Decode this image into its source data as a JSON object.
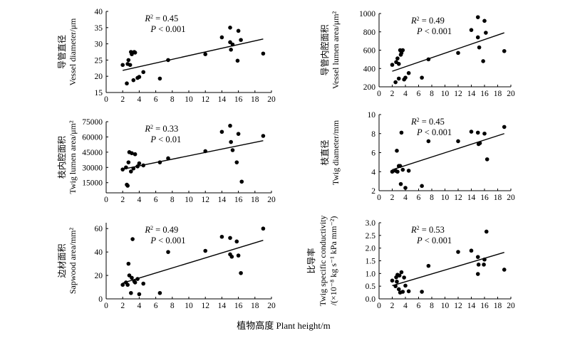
{
  "figure": {
    "xlabel": "植物高度 Plant height/m"
  },
  "chart_data": [
    {
      "type": "scatter",
      "ylabel_cn": "导管直径",
      "ylabel_en": "Vessel diameter/μm",
      "stats": [
        "R2 = 0.45",
        "P < 0.001"
      ],
      "xlim": [
        0,
        20
      ],
      "ylim": [
        15,
        40
      ],
      "xticks": [
        "0",
        "2",
        "4",
        "6",
        "8",
        "10",
        "12",
        "14",
        "16",
        "18",
        "20"
      ],
      "yticks": [
        "15",
        "20",
        "25",
        "30",
        "35",
        "40"
      ],
      "x": [
        2.0,
        2.5,
        2.6,
        2.7,
        2.9,
        3.0,
        3.1,
        3.3,
        3.4,
        3.5,
        3.8,
        4.0,
        4.5,
        6.5,
        7.5,
        12.0,
        14.0,
        15.0,
        15.0,
        15.1,
        15.3,
        15.9,
        16.0,
        16.3,
        19.0
      ],
      "y": [
        23.5,
        17.8,
        23.8,
        25.0,
        23.5,
        27.5,
        26.8,
        18.8,
        27.5,
        27.3,
        19.5,
        19.8,
        21.3,
        19.3,
        25.0,
        26.8,
        32.0,
        35.0,
        30.5,
        28.2,
        29.8,
        24.8,
        34.0,
        31.2,
        27.0
      ],
      "fit": [
        [
          2,
          21.8
        ],
        [
          19,
          31.5
        ]
      ]
    },
    {
      "type": "scatter",
      "ylabel_cn": "导管内腔面积",
      "ylabel_en": "Vessel lumen area/μm²",
      "stats": [
        "R2 = 0.49",
        "P < 0.001"
      ],
      "xlim": [
        0,
        20
      ],
      "ylim": [
        200,
        1000
      ],
      "xticks": [
        "0",
        "2",
        "4",
        "6",
        "8",
        "10",
        "12",
        "14",
        "16",
        "18",
        "20"
      ],
      "yticks": [
        "200",
        "400",
        "600",
        "800",
        "1000"
      ],
      "x": [
        2.0,
        2.5,
        2.6,
        2.8,
        3.0,
        3.0,
        3.2,
        3.3,
        3.4,
        3.6,
        3.8,
        4.0,
        4.5,
        6.5,
        7.5,
        12.0,
        14.0,
        15.0,
        15.0,
        15.2,
        15.8,
        16.0,
        16.2,
        19.0
      ],
      "y": [
        440,
        250,
        470,
        510,
        450,
        290,
        600,
        550,
        570,
        600,
        280,
        300,
        350,
        300,
        500,
        570,
        820,
        960,
        740,
        630,
        480,
        920,
        790,
        590
      ],
      "fit": [
        [
          2,
          370
        ],
        [
          19,
          790
        ]
      ]
    },
    {
      "type": "scatter",
      "ylabel_cn": "枝内腔面积",
      "ylabel_en": "Twig lumen area/μm²",
      "stats": [
        "R2 = 0.33",
        "P < 0.01"
      ],
      "xlim": [
        0,
        20
      ],
      "ylim": [
        5000,
        75000
      ],
      "xticks": [
        "0",
        "2",
        "4",
        "6",
        "8",
        "10",
        "12",
        "14",
        "16",
        "18",
        "20"
      ],
      "yticks": [
        "15000",
        "30000",
        "45000",
        "60000",
        "75000"
      ],
      "x": [
        2.0,
        2.4,
        2.5,
        2.6,
        2.7,
        2.8,
        3.0,
        3.1,
        3.3,
        3.5,
        3.8,
        4.0,
        4.5,
        6.5,
        7.5,
        12.0,
        14.0,
        15.0,
        15.1,
        15.3,
        15.8,
        16.0,
        16.4,
        19.0
      ],
      "y": [
        28000,
        30000,
        13000,
        12000,
        35000,
        45000,
        26000,
        44000,
        29000,
        43000,
        31000,
        34000,
        32000,
        35000,
        39000,
        46000,
        65000,
        71000,
        55000,
        47000,
        35000,
        63000,
        16000,
        61000
      ],
      "fit": [
        [
          2,
          28200
        ],
        [
          19,
          56300
        ]
      ]
    },
    {
      "type": "scatter",
      "ylabel_cn": "枝直径",
      "ylabel_en": "Twig diameter/mm",
      "stats": [
        "R2 = 0.45",
        "P < 0.001"
      ],
      "xlim": [
        0,
        20
      ],
      "ylim": [
        2,
        10
      ],
      "xticks": [
        "0",
        "2",
        "4",
        "6",
        "8",
        "10",
        "12",
        "14",
        "16",
        "18",
        "20"
      ],
      "yticks": [
        "2",
        "4",
        "6",
        "8",
        "10"
      ],
      "x": [
        2.0,
        2.5,
        2.7,
        2.8,
        3.0,
        3.2,
        3.3,
        3.4,
        3.6,
        4.0,
        4.5,
        6.5,
        7.5,
        12.0,
        14.0,
        15.0,
        15.1,
        15.3,
        16.0,
        16.4,
        19.0
      ],
      "y": [
        4.0,
        4.1,
        6.2,
        4.0,
        4.6,
        4.6,
        2.7,
        8.1,
        4.2,
        2.3,
        4.1,
        2.5,
        7.2,
        7.2,
        8.2,
        8.1,
        6.9,
        7.0,
        8.0,
        5.3,
        8.7
      ],
      "fit": [
        [
          2,
          4.2
        ],
        [
          19,
          8.0
        ]
      ]
    },
    {
      "type": "scatter",
      "ylabel_cn": "边材面积",
      "ylabel_en": "Sapwood area/mm²",
      "stats": [
        "R2 = 0.49",
        "P < 0.001"
      ],
      "xlim": [
        0,
        20
      ],
      "ylim": [
        0,
        65
      ],
      "xticks": [
        "0",
        "2",
        "4",
        "6",
        "8",
        "10",
        "12",
        "14",
        "16",
        "18",
        "20"
      ],
      "yticks": [
        "0",
        "20",
        "40",
        "60"
      ],
      "x": [
        2.0,
        2.4,
        2.6,
        2.7,
        2.8,
        3.0,
        3.1,
        3.2,
        3.4,
        3.5,
        3.8,
        4.0,
        4.5,
        6.5,
        7.5,
        12.0,
        14.0,
        15.0,
        15.0,
        15.2,
        15.8,
        16.0,
        16.3,
        19.0
      ],
      "y": [
        12,
        14,
        12,
        30,
        20,
        5,
        18,
        51,
        15,
        14,
        17,
        4,
        13,
        5,
        40,
        41,
        53,
        52,
        38,
        36,
        49,
        37,
        22,
        60
      ],
      "fit": [
        [
          2,
          13.5
        ],
        [
          19,
          50
        ]
      ]
    },
    {
      "type": "scatter",
      "ylabel_cn": "比导率",
      "ylabel_en": "Twig specific conductivity",
      "ylabel_en2": "/(×10⁻⁸ kg s⁻¹ kPa mm⁻²)",
      "stats": [
        "R2 = 0.53",
        "P < 0.001"
      ],
      "xlim": [
        0,
        20
      ],
      "ylim": [
        0,
        3.0
      ],
      "xticks": [
        "0",
        "2",
        "4",
        "6",
        "8",
        "10",
        "12",
        "14",
        "16",
        "18",
        "20"
      ],
      "yticks": [
        "0.0",
        "0.5",
        "1.0",
        "1.5",
        "2.0",
        "2.5",
        "3.0"
      ],
      "x": [
        2.0,
        2.5,
        2.6,
        2.7,
        2.8,
        3.0,
        3.1,
        3.2,
        3.4,
        3.6,
        3.8,
        4.0,
        4.5,
        6.5,
        7.5,
        12.0,
        14.0,
        15.0,
        15.0,
        15.1,
        15.9,
        16.0,
        16.3,
        19.0
      ],
      "y": [
        0.72,
        0.5,
        0.85,
        0.68,
        0.95,
        0.38,
        0.92,
        0.25,
        1.05,
        0.28,
        0.84,
        0.52,
        0.3,
        0.28,
        1.3,
        1.85,
        1.9,
        1.65,
        0.98,
        1.35,
        1.35,
        1.55,
        2.65,
        1.15
      ],
      "fit": [
        [
          2,
          0.52
        ],
        [
          19,
          1.83
        ]
      ]
    }
  ]
}
